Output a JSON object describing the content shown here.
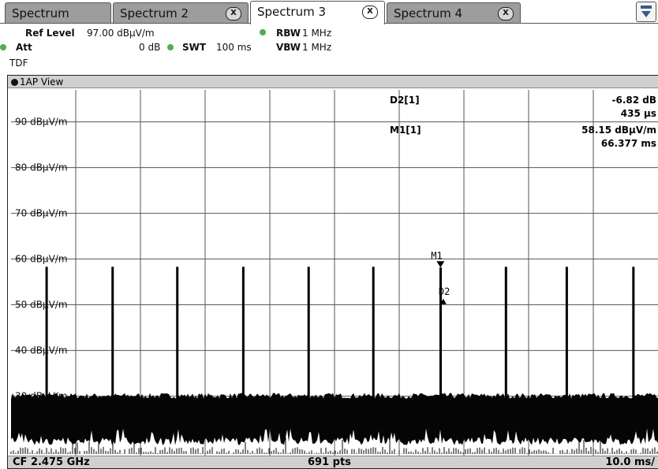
{
  "tabs": [
    {
      "label": "Spectrum",
      "closable": false
    },
    {
      "label": "Spectrum 2",
      "closable": true
    },
    {
      "label": "Spectrum 3",
      "closable": true,
      "active": true
    },
    {
      "label": "Spectrum 4",
      "closable": true
    }
  ],
  "close_glyph": "X",
  "settings": {
    "ref_level_label": "Ref Level",
    "ref_level_value": "97.00 dBµV/m",
    "att_label": "Att",
    "att_value": "0 dB",
    "swt_label": "SWT",
    "swt_value": "100 ms",
    "rbw_label": "RBW",
    "rbw_value": "1 MHz",
    "vbw_label": "VBW",
    "vbw_value": "1 MHz",
    "mode": "TDF"
  },
  "view": {
    "title": "1AP View"
  },
  "markers": {
    "d2_label": "D2[1]",
    "d2_level": "-6.82 dB",
    "d2_time": "435 µs",
    "m1_label": "M1[1]",
    "m1_level": "58.15 dBµV/m",
    "m1_time": "66.377 ms",
    "m1_tag": "M1",
    "d2_tag": "D2"
  },
  "footer": {
    "cf": "CF 2.475 GHz",
    "pts": "691 pts",
    "scale": "10.0 ms/"
  },
  "chart_data": {
    "type": "line",
    "y_unit": "dBµV/m",
    "y_ticks": [
      {
        "value": 90,
        "label": "90 dBµV/m"
      },
      {
        "value": 80,
        "label": "80 dBµV/m"
      },
      {
        "value": 70,
        "label": "70 dBµV/m"
      },
      {
        "value": 60,
        "label": "60 dBµV/m"
      },
      {
        "value": 50,
        "label": "50 dBµV/m"
      },
      {
        "value": 40,
        "label": "40 dBµV/m"
      },
      {
        "value": 30,
        "label": "30 dBµV/m"
      }
    ],
    "ylim": [
      17,
      97
    ],
    "xlim_ms": [
      0,
      100
    ],
    "x_divisions": 10,
    "noise_floor_top": 29.5,
    "noise_floor_bottom": 21,
    "pulse_times_ms": [
      5.5,
      15.7,
      25.7,
      35.9,
      46.0,
      56.0,
      66.4,
      76.5,
      85.9,
      96.2
    ],
    "pulse_levels": [
      58.3,
      58.3,
      58.3,
      58.3,
      58.3,
      58.3,
      58.15,
      58.3,
      58.3,
      58.3
    ],
    "marker_m1": {
      "x_ms": 66.377,
      "y": 58.15
    },
    "marker_d2": {
      "x_ms": 66.812,
      "y": 51.33
    },
    "grid": true
  }
}
